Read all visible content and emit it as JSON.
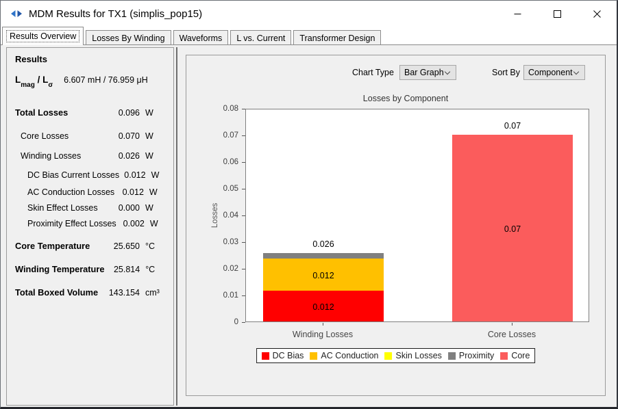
{
  "window": {
    "title": "MDM Results for TX1 (simplis_pop15)"
  },
  "icons": {
    "app": "simetrix-arrows-icon",
    "minimize": "minimize-icon",
    "maximize": "maximize-icon",
    "close": "close-icon",
    "combo_chevron": "chevron-down-icon"
  },
  "tabs": [
    {
      "label": "Results Overview",
      "active": true
    },
    {
      "label": "Losses By Winding",
      "active": false
    },
    {
      "label": "Waveforms",
      "active": false
    },
    {
      "label": "L vs. Current",
      "active": false
    },
    {
      "label": "Transformer Design",
      "active": false
    }
  ],
  "results_panel": {
    "heading": "Results",
    "inductance": {
      "symbol1": "L",
      "symbol1_sub": "mag",
      "separator": " / ",
      "symbol2": "L",
      "symbol2_sub": "σ",
      "value": "6.607 mH / 76.959 μH"
    },
    "rows": [
      {
        "label": "Total Losses",
        "value": "0.096",
        "unit": "W",
        "bold": true,
        "indent": 0
      },
      {
        "label": "Core Losses",
        "value": "0.070",
        "unit": "W",
        "bold": false,
        "indent": 1
      },
      {
        "label": "Winding Losses",
        "value": "0.026",
        "unit": "W",
        "bold": false,
        "indent": 1
      },
      {
        "label": "DC Bias Current Losses",
        "value": "0.012",
        "unit": "W",
        "bold": false,
        "indent": 2
      },
      {
        "label": "AC Conduction Losses",
        "value": "0.012",
        "unit": "W",
        "bold": false,
        "indent": 2
      },
      {
        "label": "Skin Effect Losses",
        "value": "0.000",
        "unit": "W",
        "bold": false,
        "indent": 2
      },
      {
        "label": "Proximity Effect Losses",
        "value": "0.002",
        "unit": "W",
        "bold": false,
        "indent": 2
      },
      {
        "label": "Core Temperature",
        "value": "25.650",
        "unit": "°C",
        "bold": true,
        "indent": 0
      },
      {
        "label": "Winding Temperature",
        "value": "25.814",
        "unit": "°C",
        "bold": true,
        "indent": 0
      },
      {
        "label": "Total Boxed Volume",
        "value": "143.154",
        "unit": "cm³",
        "bold": true,
        "indent": 0
      }
    ]
  },
  "chart_panel": {
    "chart_type_label": "Chart Type",
    "chart_type_value": "Bar Graph",
    "sort_by_label": "Sort By",
    "sort_by_value": "Component"
  },
  "chart_data": {
    "type": "bar",
    "stacked": true,
    "title": "Losses by Component",
    "xlabel": "",
    "ylabel": "Losses",
    "ylim": [
      0,
      0.08
    ],
    "ytick_step": 0.01,
    "grid": false,
    "legend_position": "bottom",
    "categories": [
      "Winding Losses",
      "Core Losses"
    ],
    "series": [
      {
        "name": "DC Bias",
        "color": "#ff0000",
        "values": [
          0.0115,
          0
        ],
        "labels": [
          "0.012",
          ""
        ]
      },
      {
        "name": "AC Conduction",
        "color": "#ffc000",
        "values": [
          0.012,
          0
        ],
        "labels": [
          "0.012",
          ""
        ]
      },
      {
        "name": "Skin Losses",
        "color": "#ffff00",
        "values": [
          0,
          0
        ],
        "labels": [
          "",
          ""
        ]
      },
      {
        "name": "Proximity",
        "color": "#808080",
        "values": [
          0.002,
          0
        ],
        "labels": [
          "",
          ""
        ]
      },
      {
        "name": "Core",
        "color": "#fb5c5c",
        "values": [
          0,
          0.07
        ],
        "labels": [
          "",
          "0.07"
        ]
      }
    ],
    "totals": [
      "0.026",
      "0.07"
    ]
  }
}
